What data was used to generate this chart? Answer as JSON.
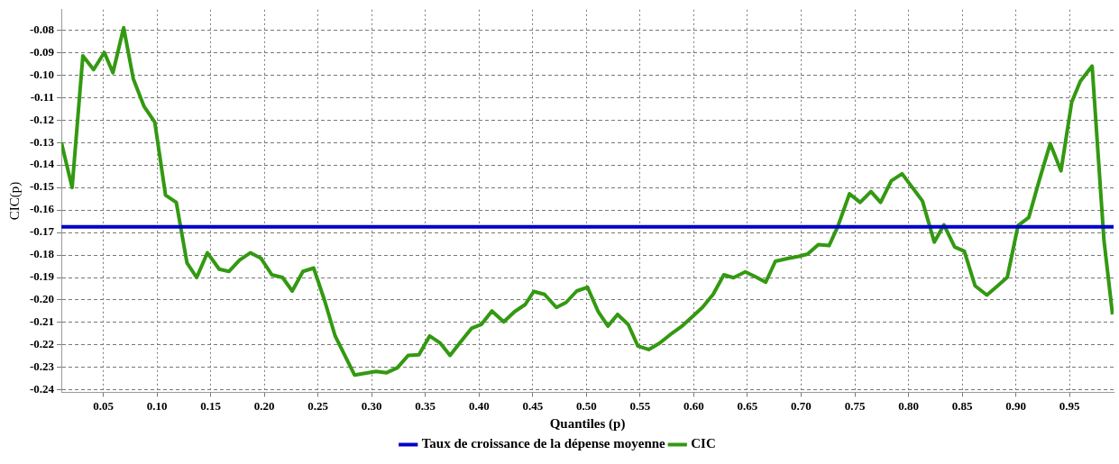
{
  "chart_data": {
    "type": "line",
    "xlabel": "Quantiles (p)",
    "ylabel": "CIC(p)",
    "xlim": [
      0.011,
      0.991
    ],
    "ylim": [
      -0.241,
      -0.071
    ],
    "xticks": [
      0.05,
      {
        "value": 0.1,
        "label": "0.10"
      },
      0.15,
      {
        "value": 0.2,
        "label": "0.20"
      },
      0.25,
      {
        "value": 0.3,
        "label": "0.30"
      },
      0.35,
      {
        "value": 0.4,
        "label": "0.40"
      },
      0.45,
      {
        "value": 0.5,
        "label": "0.50"
      },
      0.55,
      {
        "value": 0.6,
        "label": "0.60"
      },
      0.65,
      {
        "value": 0.7,
        "label": "0.70"
      },
      0.75,
      {
        "value": 0.8,
        "label": "0.80"
      },
      0.85,
      {
        "value": 0.9,
        "label": "0.90"
      },
      0.95
    ],
    "yticks": [
      -0.08,
      -0.09,
      {
        "value": -0.1,
        "label": "-0.10"
      },
      -0.11,
      -0.12,
      -0.13,
      -0.14,
      -0.15,
      -0.16,
      -0.17,
      -0.18,
      -0.19,
      {
        "value": -0.2,
        "label": "-0.20"
      },
      -0.21,
      -0.22,
      -0.23,
      -0.24
    ],
    "grid": true,
    "legend": "bottom",
    "marker": "none",
    "line_style": "solid",
    "series": [
      {
        "name": "Taux de croissance de la dépense moyenne",
        "color": "#0000cc",
        "x": [
          0.011,
          0.991
        ],
        "values": [
          -0.1675,
          -0.1675
        ]
      },
      {
        "name": "CIC",
        "color": "#339911",
        "x": [
          0.011,
          0.021,
          0.031,
          0.041,
          0.051,
          0.059,
          0.069,
          0.078,
          0.088,
          0.098,
          0.108,
          0.118,
          0.128,
          0.137,
          0.147,
          0.158,
          0.167,
          0.177,
          0.187,
          0.197,
          0.207,
          0.217,
          0.226,
          0.236,
          0.246,
          0.256,
          0.266,
          0.284,
          0.304,
          0.314,
          0.324,
          0.334,
          0.344,
          0.354,
          0.364,
          0.373,
          0.384,
          0.393,
          0.402,
          0.412,
          0.423,
          0.433,
          0.443,
          0.451,
          0.461,
          0.472,
          0.481,
          0.491,
          0.501,
          0.511,
          0.52,
          0.529,
          0.539,
          0.548,
          0.558,
          0.568,
          0.578,
          0.588,
          0.598,
          0.608,
          0.618,
          0.628,
          0.637,
          0.648,
          0.658,
          0.667,
          0.676,
          0.688,
          0.698,
          0.706,
          0.716,
          0.726,
          0.734,
          0.745,
          0.755,
          0.765,
          0.774,
          0.784,
          0.794,
          0.805,
          0.813,
          0.824,
          0.833,
          0.843,
          0.852,
          0.862,
          0.873,
          0.883,
          0.892,
          0.902,
          0.912,
          0.922,
          0.932,
          0.942,
          0.952,
          0.96,
          0.971,
          0.982,
          0.99
        ],
        "values": [
          -0.13,
          -0.15,
          -0.0915,
          -0.0976,
          -0.09,
          -0.099,
          -0.079,
          -0.1017,
          -0.114,
          -0.121,
          -0.1534,
          -0.1566,
          -0.1835,
          -0.19,
          -0.179,
          -0.1863,
          -0.1873,
          -0.1822,
          -0.179,
          -0.1815,
          -0.1888,
          -0.19,
          -0.196,
          -0.1873,
          -0.1858,
          -0.2,
          -0.216,
          -0.2333,
          -0.2317,
          -0.2323,
          -0.2301,
          -0.2246,
          -0.2243,
          -0.216,
          -0.2192,
          -0.2246,
          -0.2179,
          -0.2126,
          -0.2109,
          -0.2049,
          -0.2097,
          -0.2052,
          -0.202,
          -0.1962,
          -0.1975,
          -0.2033,
          -0.2011,
          -0.196,
          -0.1943,
          -0.2052,
          -0.2116,
          -0.2064,
          -0.2109,
          -0.2205,
          -0.222,
          -0.2192,
          -0.2154,
          -0.212,
          -0.2077,
          -0.2033,
          -0.1975,
          -0.1888,
          -0.1901,
          -0.1875,
          -0.1898,
          -0.1921,
          -0.1828,
          -0.1815,
          -0.1806,
          -0.1796,
          -0.1754,
          -0.1758,
          -0.1675,
          -0.1528,
          -0.1566,
          -0.1518,
          -0.1566,
          -0.147,
          -0.1439,
          -0.1509,
          -0.156,
          -0.1743,
          -0.1666,
          -0.1764,
          -0.1783,
          -0.1937,
          -0.1978,
          -0.1937,
          -0.1899,
          -0.1669,
          -0.1633,
          -0.1464,
          -0.1305,
          -0.1426,
          -0.112,
          -0.1028,
          -0.096,
          -0.1733,
          -0.2064
        ]
      }
    ]
  }
}
